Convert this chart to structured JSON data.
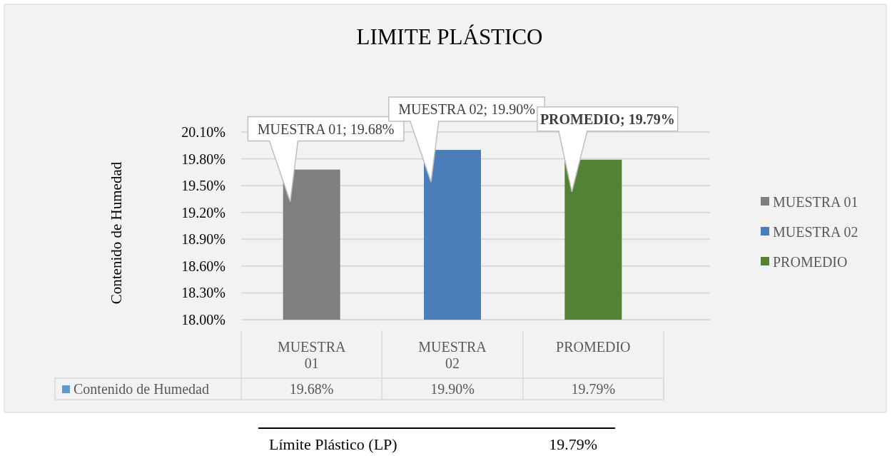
{
  "chart_data": {
    "type": "bar",
    "title": "LIMITE PLÁSTICO",
    "ylabel": "Contenido de Humedad",
    "categories": [
      "MUESTRA 01",
      "MUESTRA 02",
      "PROMEDIO"
    ],
    "series": [
      {
        "name": "Contenido de Humedad",
        "color": "#5b9bd5",
        "colors": [
          "#7f7f7f",
          "#4a7ebb",
          "#548235"
        ],
        "values": [
          19.68,
          19.9,
          19.79
        ],
        "value_labels": [
          "19.68%",
          "19.90%",
          "19.79%"
        ]
      }
    ],
    "ylim": [
      18,
      20.1
    ],
    "yticks": [
      {
        "value": 18,
        "label": "18.00%"
      },
      {
        "value": 18.3,
        "label": "18.30%"
      },
      {
        "value": 18.6,
        "label": "18.60%"
      },
      {
        "value": 18.9,
        "label": "18.90%"
      },
      {
        "value": 19.2,
        "label": "19.20%"
      },
      {
        "value": 19.5,
        "label": "19.50%"
      },
      {
        "value": 19.8,
        "label": "19.80%"
      },
      {
        "value": 20.1,
        "label": "20.10%"
      }
    ],
    "grid": true,
    "legend": "bottom left",
    "annotations": [
      {
        "text": "MUESTRA 01; 19.68%",
        "x": "MUESTRA 01",
        "y": 19.68
      },
      {
        "text": "MUESTRA 02; 19.90%",
        "x": "MUESTRA 02",
        "y": 19.9
      },
      {
        "text": "PROMEDIO; 19.79%",
        "x": "PROMEDIO",
        "y": 19.79
      },
      "Límite Plástico (LP)",
      "19.79%"
    ]
  }
}
